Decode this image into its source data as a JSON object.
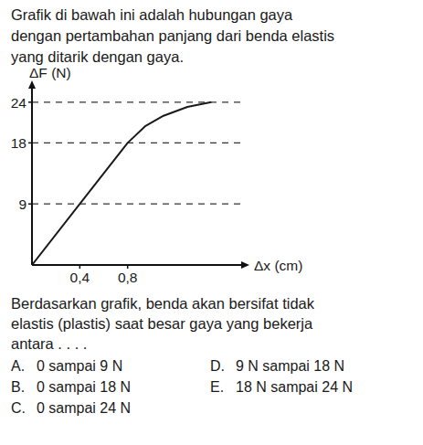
{
  "intro": [
    "Grafik di bawah ini adalah hubungan gaya",
    "dengan pertambahan panjang dari benda elastis",
    "yang ditarik dengan gaya."
  ],
  "chart_data": {
    "type": "line",
    "y_label": "ΔF (N)",
    "x_label": "Δx (cm)",
    "x": [
      0,
      0.4,
      0.8,
      0.95,
      1.1,
      1.3,
      1.5
    ],
    "values": [
      0,
      9,
      18,
      20.5,
      22,
      23.3,
      24
    ],
    "color": "#1a1a1a",
    "xlim": [
      0,
      1.75
    ],
    "ylim": [
      0,
      26
    ],
    "xticks": [
      {
        "value": 0.4,
        "label": "0,4"
      },
      {
        "value": 0.8,
        "label": "0,8"
      }
    ],
    "yticks": [
      9,
      18,
      24
    ],
    "grid": true
  },
  "question": [
    "Berdasarkan grafik, benda akan bersifat tidak",
    "elastis (plastis) saat besar gaya yang bekerja",
    "antara . . . ."
  ],
  "options": [
    {
      "letter": "A.",
      "text": "0 sampai 9 N"
    },
    {
      "letter": "B.",
      "text": "0 sampai 18 N"
    },
    {
      "letter": "C.",
      "text": "0 sampai 24 N"
    },
    {
      "letter": "D.",
      "text": "9 N sampai 18 N"
    },
    {
      "letter": "E.",
      "text": "18 N sampai 24 N"
    }
  ]
}
